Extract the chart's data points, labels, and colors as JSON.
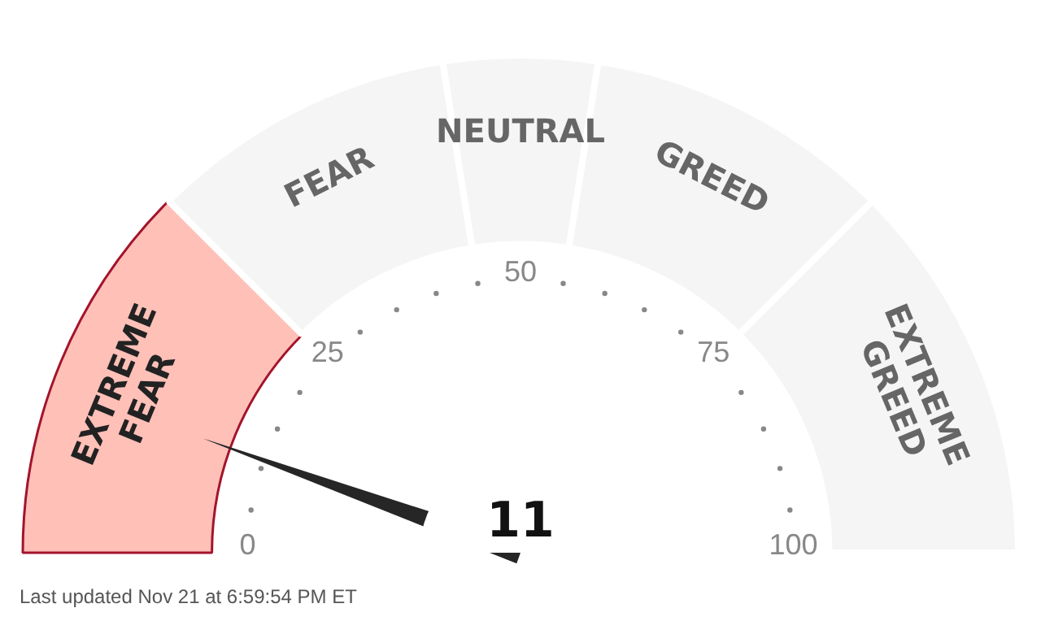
{
  "chart_data": {
    "type": "donut",
    "categories": [
      "EXTREME FEAR",
      "FEAR",
      "NEUTRAL",
      "GREED",
      "EXTREME GREED"
    ],
    "values": [
      25,
      20,
      10,
      20,
      25
    ],
    "colors": [
      "#ffc0b8",
      "#f5f5f5",
      "#f5f5f5",
      "#f5f5f5",
      "#f5f5f5"
    ],
    "needle": "EXTREME FEAR",
    "annotations": [
      "11",
      "0",
      "25",
      "50",
      "75",
      "100",
      "Last updated Nov 21 at 6:59:54 PM ET"
    ]
  }
}
